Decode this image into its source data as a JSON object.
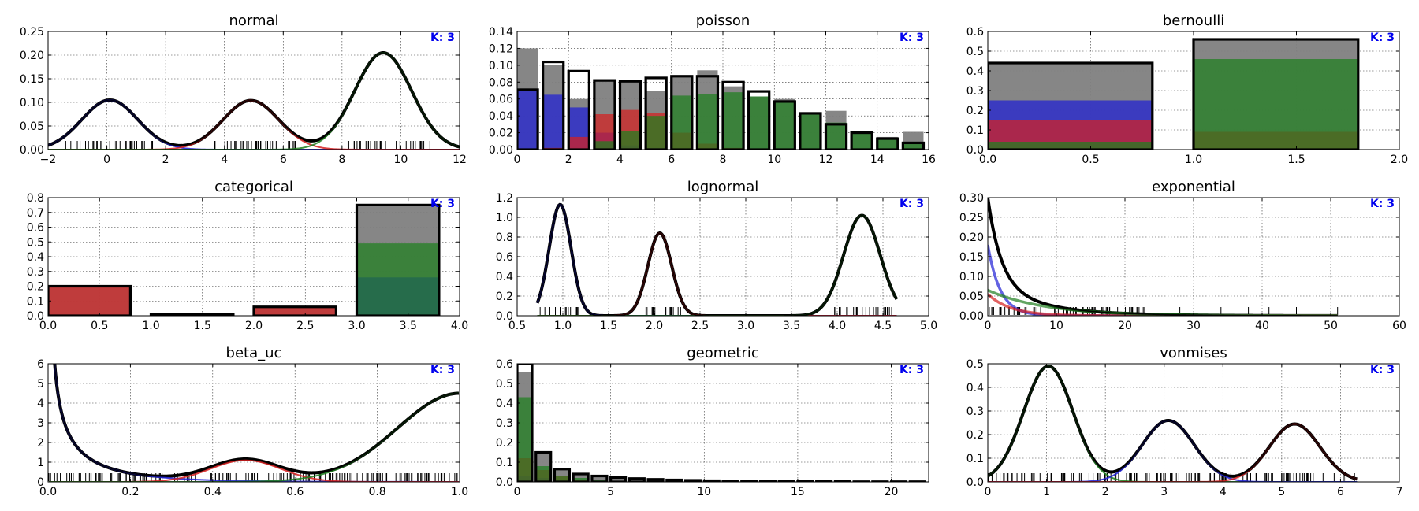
{
  "figure": {
    "k_label": "K: 3",
    "colors": {
      "blue": "#1f1fd6",
      "red": "#d62020",
      "green": "#1f7f1f",
      "gray": "#808080",
      "black": "#000000",
      "k_text": "#0000ee"
    }
  },
  "chart_data": [
    {
      "id": "normal",
      "type": "line",
      "title": "normal",
      "xlim": [
        -2,
        12
      ],
      "ylim": [
        0,
        0.25
      ],
      "xticks": [
        -2,
        0,
        2,
        4,
        6,
        8,
        10,
        12
      ],
      "yticks": [
        0,
        0.05,
        0.1,
        0.15,
        0.2,
        0.25
      ],
      "xtick_labels": [
        "−2",
        "0",
        "2",
        "4",
        "6",
        "8",
        "10",
        "12"
      ],
      "ytick_labels": [
        "0.00",
        "0.05",
        "0.10",
        "0.15",
        "0.20",
        "0.25"
      ],
      "grid": true,
      "components": [
        {
          "color": "blue",
          "kind": "gauss",
          "mu": 0.1,
          "sigma": 0.95,
          "peak": 0.105
        },
        {
          "color": "red",
          "kind": "gauss",
          "mu": 4.9,
          "sigma": 0.95,
          "peak": 0.104
        },
        {
          "color": "green",
          "kind": "gauss",
          "mu": 9.4,
          "sigma": 0.97,
          "peak": 0.205
        }
      ],
      "rug_ranges": [
        [
          -1.4,
          1.8
        ],
        [
          3.5,
          6.6
        ],
        [
          8.2,
          11.0
        ]
      ]
    },
    {
      "id": "poisson",
      "type": "bar",
      "title": "poisson",
      "xlim": [
        0,
        16
      ],
      "ylim": [
        0,
        0.14
      ],
      "xticks": [
        0,
        2,
        4,
        6,
        8,
        10,
        12,
        14,
        16
      ],
      "yticks": [
        0,
        0.02,
        0.04,
        0.06,
        0.08,
        0.1,
        0.12,
        0.14
      ],
      "xtick_labels": [
        "0",
        "2",
        "4",
        "6",
        "8",
        "10",
        "12",
        "14",
        "16"
      ],
      "ytick_labels": [
        "0.00",
        "0.02",
        "0.04",
        "0.06",
        "0.08",
        "0.10",
        "0.12",
        "0.14"
      ],
      "grid": true,
      "categories": [
        0,
        1,
        2,
        3,
        4,
        5,
        6,
        7,
        8,
        9,
        10,
        11,
        12,
        13,
        14,
        15
      ],
      "empirical": [
        0.12,
        0.1,
        0.06,
        0.083,
        0.082,
        0.07,
        0.088,
        0.094,
        0.075,
        0.063,
        0.06,
        0.043,
        0.046,
        0.02,
        0.015,
        0.021
      ],
      "series": [
        {
          "color": "blue",
          "values": [
            0.07,
            0.065,
            0.05,
            0.02,
            0.005,
            0.002,
            0.0,
            0.0,
            0.0,
            0.0,
            0.0,
            0.0,
            0.0,
            0.0,
            0.0,
            0.0
          ]
        },
        {
          "color": "red",
          "values": [
            0.0,
            0.002,
            0.015,
            0.042,
            0.047,
            0.043,
            0.02,
            0.007,
            0.002,
            0.0,
            0.0,
            0.0,
            0.0,
            0.0,
            0.0,
            0.0
          ]
        },
        {
          "color": "green",
          "values": [
            0.0,
            0.0,
            0.0,
            0.01,
            0.022,
            0.04,
            0.064,
            0.066,
            0.068,
            0.063,
            0.057,
            0.043,
            0.032,
            0.02,
            0.012,
            0.008
          ]
        }
      ],
      "model": [
        0.071,
        0.104,
        0.093,
        0.082,
        0.081,
        0.085,
        0.087,
        0.087,
        0.08,
        0.069,
        0.057,
        0.043,
        0.03,
        0.02,
        0.013,
        0.008
      ]
    },
    {
      "id": "bernoulli",
      "type": "bar",
      "title": "bernoulli",
      "xlim": [
        0,
        2
      ],
      "ylim": [
        0,
        0.6
      ],
      "xticks": [
        0,
        0.5,
        1,
        1.5,
        2
      ],
      "yticks": [
        0,
        0.1,
        0.2,
        0.3,
        0.4,
        0.5,
        0.6
      ],
      "xtick_labels": [
        "0.0",
        "0.5",
        "1.0",
        "1.5",
        "2.0"
      ],
      "ytick_labels": [
        "0.0",
        "0.1",
        "0.2",
        "0.3",
        "0.4",
        "0.5",
        "0.6"
      ],
      "grid": true,
      "bar_width": 0.8,
      "categories": [
        0,
        1
      ],
      "empirical": [
        0.44,
        0.56
      ],
      "series": [
        {
          "color": "blue",
          "values": [
            0.25,
            0.0
          ]
        },
        {
          "color": "red",
          "values": [
            0.15,
            0.09
          ]
        },
        {
          "color": "green",
          "values": [
            0.04,
            0.46
          ]
        }
      ],
      "model": [
        0.44,
        0.56
      ]
    },
    {
      "id": "categorical",
      "type": "bar",
      "title": "categorical",
      "xlim": [
        0,
        4
      ],
      "ylim": [
        0,
        0.8
      ],
      "xticks": [
        0,
        0.5,
        1,
        1.5,
        2,
        2.5,
        3,
        3.5,
        4
      ],
      "yticks": [
        0,
        0.1,
        0.2,
        0.3,
        0.4,
        0.5,
        0.6,
        0.7,
        0.8
      ],
      "xtick_labels": [
        "0.0",
        "0.5",
        "1.0",
        "1.5",
        "2.0",
        "2.5",
        "3.0",
        "3.5",
        "4.0"
      ],
      "ytick_labels": [
        "0.0",
        "0.1",
        "0.2",
        "0.3",
        "0.4",
        "0.5",
        "0.6",
        "0.7",
        "0.8"
      ],
      "grid": true,
      "bar_width": 0.8,
      "categories": [
        0,
        1,
        2,
        3
      ],
      "empirical": [
        0.2,
        0.01,
        0.06,
        0.75
      ],
      "series": [
        {
          "color": "blue",
          "values": [
            0.0,
            0.0,
            0.0,
            0.26
          ]
        },
        {
          "color": "red",
          "values": [
            0.2,
            0.0,
            0.06,
            0.0
          ]
        },
        {
          "color": "green",
          "values": [
            0.0,
            0.0,
            0.0,
            0.49
          ]
        }
      ],
      "model": [
        0.2,
        0.01,
        0.06,
        0.75
      ]
    },
    {
      "id": "lognormal",
      "type": "line",
      "title": "lognormal",
      "xlim": [
        0.5,
        5
      ],
      "ylim": [
        0,
        1.2
      ],
      "xticks": [
        0.5,
        1,
        1.5,
        2,
        2.5,
        3,
        3.5,
        4,
        4.5,
        5
      ],
      "yticks": [
        0,
        0.2,
        0.4,
        0.6,
        0.8,
        1,
        1.2
      ],
      "xtick_labels": [
        "0.5",
        "1.0",
        "1.5",
        "2.0",
        "2.5",
        "3.0",
        "3.5",
        "4.0",
        "4.5",
        "5.0"
      ],
      "ytick_labels": [
        "0.0",
        "0.2",
        "0.4",
        "0.6",
        "0.8",
        "1.0",
        "1.2"
      ],
      "grid": true,
      "x_range": [
        0.72,
        4.65
      ],
      "components": [
        {
          "color": "blue",
          "kind": "gauss",
          "mu": 0.97,
          "sigma": 0.12,
          "peak": 1.13
        },
        {
          "color": "red",
          "kind": "gauss",
          "mu": 2.06,
          "sigma": 0.13,
          "peak": 0.84
        },
        {
          "color": "green",
          "kind": "gauss",
          "mu": 4.27,
          "sigma": 0.2,
          "peak": 1.02
        }
      ],
      "rug_ranges": [
        [
          0.75,
          1.2
        ],
        [
          1.9,
          2.3
        ],
        [
          3.95,
          4.6
        ]
      ]
    },
    {
      "id": "exponential",
      "type": "line",
      "title": "exponential",
      "xlim": [
        0,
        60
      ],
      "ylim": [
        0,
        0.3
      ],
      "xticks": [
        0,
        10,
        20,
        30,
        40,
        50,
        60
      ],
      "yticks": [
        0,
        0.05,
        0.1,
        0.15,
        0.2,
        0.25,
        0.3
      ],
      "xtick_labels": [
        "0",
        "10",
        "20",
        "30",
        "40",
        "50",
        "60"
      ],
      "ytick_labels": [
        "0.00",
        "0.05",
        "0.10",
        "0.15",
        "0.20",
        "0.25",
        "0.30"
      ],
      "grid": true,
      "x_range": [
        0,
        51
      ],
      "components": [
        {
          "color": "blue",
          "kind": "exp",
          "a": 0.18,
          "rate": 0.55
        },
        {
          "color": "red",
          "kind": "exp",
          "a": 0.055,
          "rate": 0.3
        },
        {
          "color": "green",
          "kind": "exp",
          "a": 0.065,
          "rate": 0.12
        }
      ],
      "rug_ranges": [
        [
          0,
          23
        ]
      ],
      "rug_sparse": [
        28,
        34,
        38,
        41,
        45,
        51
      ]
    },
    {
      "id": "beta_uc",
      "type": "line",
      "title": "beta_uc",
      "xlim": [
        0,
        1
      ],
      "ylim": [
        0,
        6
      ],
      "xticks": [
        0,
        0.2,
        0.4,
        0.6,
        0.8,
        1
      ],
      "yticks": [
        0,
        1,
        2,
        3,
        4,
        5,
        6
      ],
      "xtick_labels": [
        "0.0",
        "0.2",
        "0.4",
        "0.6",
        "0.8",
        "1.0"
      ],
      "ytick_labels": [
        "0",
        "1",
        "2",
        "3",
        "4",
        "5",
        "6"
      ],
      "grid": true,
      "x_range": [
        0.002,
        0.998
      ],
      "components": [
        {
          "color": "blue",
          "kind": "powlo",
          "a": 0.55,
          "p": 0.6
        },
        {
          "color": "red",
          "kind": "gauss",
          "mu": 0.48,
          "sigma": 0.085,
          "peak": 1.1
        },
        {
          "color": "green",
          "kind": "powhi",
          "a": 4.5,
          "k": 10
        }
      ],
      "rug_ranges": [
        [
          0.0,
          1.0
        ]
      ]
    },
    {
      "id": "geometric",
      "type": "bar",
      "title": "geometric",
      "xlim": [
        0,
        22
      ],
      "ylim": [
        0,
        0.6
      ],
      "xticks": [
        0,
        5,
        10,
        15,
        20
      ],
      "yticks": [
        0,
        0.1,
        0.2,
        0.3,
        0.4,
        0.5,
        0.6
      ],
      "xtick_labels": [
        "0",
        "5",
        "10",
        "15",
        "20"
      ],
      "ytick_labels": [
        "0.0",
        "0.1",
        "0.2",
        "0.3",
        "0.4",
        "0.5",
        "0.6"
      ],
      "grid": true,
      "categories": [
        0,
        1,
        2,
        3,
        4,
        5,
        6,
        7,
        8,
        9,
        10,
        11,
        12,
        13,
        14,
        15,
        16,
        17,
        18,
        19,
        20,
        21
      ],
      "empirical": [
        0.56,
        0.14,
        0.06,
        0.04,
        0.03,
        0.02,
        0.015,
        0.01,
        0.01,
        0.008,
        0.006,
        0.005,
        0.004,
        0.003,
        0.003,
        0.002,
        0.002,
        0.001,
        0.001,
        0.001,
        0.001,
        0.001
      ],
      "series": [
        {
          "color": "blue",
          "values": [
            0.03,
            0.02,
            0.01,
            0.004,
            0.0,
            0.0,
            0.0,
            0.0,
            0.0,
            0.0,
            0.0,
            0.0,
            0.0,
            0.0,
            0.0,
            0.0,
            0.0,
            0.0,
            0.0,
            0.0,
            0.0,
            0.0
          ]
        },
        {
          "color": "red",
          "values": [
            0.12,
            0.06,
            0.03,
            0.01,
            0.004,
            0.0,
            0.0,
            0.0,
            0.0,
            0.0,
            0.0,
            0.0,
            0.0,
            0.0,
            0.0,
            0.0,
            0.0,
            0.0,
            0.0,
            0.0,
            0.0,
            0.0
          ]
        },
        {
          "color": "green",
          "values": [
            0.43,
            0.08,
            0.03,
            0.02,
            0.01,
            0.005,
            0.0,
            0.0,
            0.0,
            0.0,
            0.0,
            0.0,
            0.0,
            0.0,
            0.0,
            0.0,
            0.0,
            0.0,
            0.0,
            0.0,
            0.0,
            0.0
          ]
        }
      ],
      "model": [
        0.6,
        0.15,
        0.065,
        0.04,
        0.03,
        0.022,
        0.017,
        0.013,
        0.01,
        0.008,
        0.006,
        0.005,
        0.004,
        0.003,
        0.003,
        0.002,
        0.002,
        0.002,
        0.001,
        0.001,
        0.001,
        0.001
      ]
    },
    {
      "id": "vonmises",
      "type": "line",
      "title": "vonmises",
      "xlim": [
        0,
        7
      ],
      "ylim": [
        0,
        0.5
      ],
      "xticks": [
        0,
        1,
        2,
        3,
        4,
        5,
        6,
        7
      ],
      "yticks": [
        0,
        0.1,
        0.2,
        0.3,
        0.4,
        0.5
      ],
      "xtick_labels": [
        "0",
        "1",
        "2",
        "3",
        "4",
        "5",
        "6",
        "7"
      ],
      "ytick_labels": [
        "0.0",
        "0.1",
        "0.2",
        "0.3",
        "0.4",
        "0.5"
      ],
      "grid": true,
      "x_range": [
        0,
        6.28
      ],
      "components": [
        {
          "color": "green",
          "kind": "gauss",
          "mu": 1.03,
          "sigma": 0.42,
          "peak": 0.49
        },
        {
          "color": "blue",
          "kind": "gauss",
          "mu": 3.07,
          "sigma": 0.44,
          "peak": 0.26
        },
        {
          "color": "red",
          "kind": "gauss",
          "mu": 5.22,
          "sigma": 0.43,
          "peak": 0.245
        }
      ],
      "rug_ranges": [
        [
          0.0,
          6.28
        ]
      ]
    }
  ]
}
